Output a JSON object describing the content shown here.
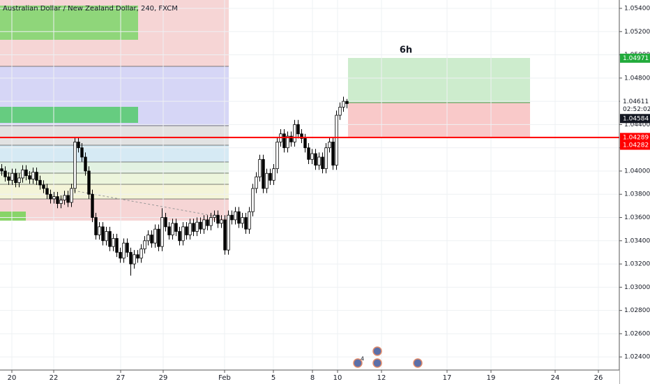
{
  "chart_data": {
    "type": "candlestick",
    "title": "Australian Dollar / New Zealand Dollar, 240, FXCM",
    "open": [
      1.0402,
      1.04,
      1.0395,
      1.0392,
      1.0398,
      1.039,
      1.0394,
      1.0401,
      1.0396,
      1.0393,
      1.0399,
      1.0392,
      1.0388,
      1.0385,
      1.038,
      1.0376,
      1.0378,
      1.0372,
      1.0375,
      1.0379,
      1.0373,
      1.0385,
      1.0425,
      1.042,
      1.0412,
      1.04,
      1.038,
      1.036,
      1.0345,
      1.0352,
      1.034,
      1.0348,
      1.0335,
      1.0342,
      1.033,
      1.0325,
      1.0338,
      1.033,
      1.032,
      1.0328,
      1.0325,
      1.0333,
      1.034,
      1.0345,
      1.0338,
      1.035,
      1.0335,
      1.036,
      1.0352,
      1.0345,
      1.0355,
      1.0348,
      1.034,
      1.0352,
      1.0345,
      1.0355,
      1.0348,
      1.0356,
      1.035,
      1.0358,
      1.0353,
      1.036,
      1.0362,
      1.0355,
      1.0358,
      1.0332,
      1.0362,
      1.0358,
      1.0365,
      1.0355,
      1.036,
      1.035,
      1.0365,
      1.0385,
      1.0395,
      1.041,
      1.0385,
      1.0398,
      1.0392,
      1.0402,
      1.0425,
      1.0432,
      1.042,
      1.043,
      1.0425,
      1.044,
      1.0432,
      1.0428,
      1.042,
      1.041,
      1.0415,
      1.0405,
      1.0412,
      1.0402,
      1.042,
      1.0425,
      1.0405,
      1.0448,
      1.0455,
      1.046
    ],
    "high": [
      1.0406,
      1.0404,
      1.0399,
      1.0402,
      1.0402,
      1.0398,
      1.0405,
      1.0405,
      1.04,
      1.0403,
      1.0403,
      1.0396,
      1.0392,
      1.0389,
      1.0384,
      1.0382,
      1.0382,
      1.0379,
      1.0383,
      1.0383,
      1.0389,
      1.0429,
      1.0429,
      1.0424,
      1.0416,
      1.0404,
      1.0384,
      1.0364,
      1.0356,
      1.0356,
      1.0352,
      1.0352,
      1.0346,
      1.0346,
      1.0334,
      1.0342,
      1.0342,
      1.0334,
      1.0332,
      1.0332,
      1.0337,
      1.0344,
      1.0349,
      1.0349,
      1.0354,
      1.0354,
      1.0368,
      1.0364,
      1.0356,
      1.0359,
      1.0359,
      1.0352,
      1.0356,
      1.0356,
      1.0359,
      1.0359,
      1.036,
      1.036,
      1.0362,
      1.0362,
      1.0364,
      1.0366,
      1.0366,
      1.0362,
      1.0362,
      1.0366,
      1.0366,
      1.0369,
      1.0369,
      1.0364,
      1.0364,
      1.0369,
      1.0389,
      1.0399,
      1.0414,
      1.0414,
      1.0402,
      1.0402,
      1.0406,
      1.0429,
      1.0436,
      1.0436,
      1.0434,
      1.0434,
      1.0444,
      1.0444,
      1.0436,
      1.0432,
      1.0424,
      1.0419,
      1.0419,
      1.0416,
      1.0416,
      1.0424,
      1.0429,
      1.0429,
      1.0452,
      1.0459,
      1.0464,
      1.0462
    ],
    "low": [
      1.0396,
      1.0391,
      1.0388,
      1.0388,
      1.0386,
      1.0386,
      1.039,
      1.0392,
      1.0389,
      1.0389,
      1.0388,
      1.0384,
      1.0381,
      1.0376,
      1.0372,
      1.0372,
      1.0368,
      1.0368,
      1.0371,
      1.0369,
      1.0369,
      1.0381,
      1.0416,
      1.0408,
      1.0396,
      1.0376,
      1.0356,
      1.0341,
      1.0341,
      1.0336,
      1.0336,
      1.0331,
      1.0331,
      1.0326,
      1.0321,
      1.0321,
      1.0326,
      1.031,
      1.0316,
      1.0321,
      1.0321,
      1.0329,
      1.0336,
      1.0334,
      1.0334,
      1.0331,
      1.0331,
      1.0348,
      1.0341,
      1.0341,
      1.0344,
      1.0336,
      1.0336,
      1.0341,
      1.0341,
      1.0344,
      1.0344,
      1.0346,
      1.0346,
      1.0349,
      1.0349,
      1.0356,
      1.0351,
      1.0351,
      1.0328,
      1.0328,
      1.0354,
      1.0354,
      1.0351,
      1.0351,
      1.0346,
      1.0346,
      1.0361,
      1.0381,
      1.0391,
      1.0381,
      1.0381,
      1.0388,
      1.0388,
      1.0398,
      1.0421,
      1.0416,
      1.0416,
      1.0421,
      1.0421,
      1.0428,
      1.0424,
      1.0416,
      1.0406,
      1.0406,
      1.0401,
      1.0401,
      1.0398,
      1.0398,
      1.0416,
      1.0401,
      1.0401,
      1.0444,
      1.0451,
      1.0454
    ],
    "close": [
      1.04,
      1.0395,
      1.0392,
      1.0398,
      1.039,
      1.0394,
      1.0401,
      1.0396,
      1.0393,
      1.0399,
      1.0392,
      1.0388,
      1.0385,
      1.038,
      1.0376,
      1.0378,
      1.0372,
      1.0375,
      1.0379,
      1.0373,
      1.0385,
      1.0425,
      1.042,
      1.0412,
      1.04,
      1.038,
      1.036,
      1.0345,
      1.0352,
      1.034,
      1.0348,
      1.0335,
      1.0342,
      1.033,
      1.0325,
      1.0338,
      1.033,
      1.032,
      1.0328,
      1.0325,
      1.0333,
      1.034,
      1.0345,
      1.0338,
      1.035,
      1.0335,
      1.036,
      1.0352,
      1.0345,
      1.0355,
      1.0348,
      1.034,
      1.0352,
      1.0345,
      1.0355,
      1.0348,
      1.0356,
      1.035,
      1.0358,
      1.0353,
      1.036,
      1.0362,
      1.0355,
      1.0358,
      1.0332,
      1.0362,
      1.0358,
      1.0365,
      1.0355,
      1.036,
      1.035,
      1.0365,
      1.0385,
      1.0395,
      1.041,
      1.0385,
      1.0398,
      1.0392,
      1.0402,
      1.0425,
      1.0432,
      1.042,
      1.043,
      1.0425,
      1.044,
      1.0432,
      1.0428,
      1.042,
      1.041,
      1.0415,
      1.0405,
      1.0412,
      1.0402,
      1.042,
      1.0425,
      1.0405,
      1.0448,
      1.0455,
      1.046,
      1.0458
    ],
    "up_color": "#ffffff",
    "down_color": "#000000",
    "ylim": [
      1.02167,
      1.05472
    ],
    "yticks": [
      {
        "value": 1.024,
        "label": "1.02400"
      },
      {
        "value": 1.026,
        "label": "1.02600"
      },
      {
        "value": 1.028,
        "label": "1.02800"
      },
      {
        "value": 1.03,
        "label": "1.03000"
      },
      {
        "value": 1.032,
        "label": "1.03200"
      },
      {
        "value": 1.034,
        "label": "1.03400"
      },
      {
        "value": 1.036,
        "label": "1.03600"
      },
      {
        "value": 1.038,
        "label": "1.03800"
      },
      {
        "value": 1.04,
        "label": "1.04000"
      },
      {
        "value": 1.042,
        "label": "1.04200"
      },
      {
        "value": 1.044,
        "label": "1.04400"
      },
      {
        "value": 1.046,
        "label": "1.04600"
      },
      {
        "value": 1.048,
        "label": "1.04800"
      },
      {
        "value": 1.05,
        "label": "1.05000"
      },
      {
        "value": 1.052,
        "label": "1.05200"
      },
      {
        "value": 1.054,
        "label": "1.05400"
      }
    ],
    "xlim": [
      -0.5,
      177.1
    ],
    "xticks": [
      {
        "value": 2.9,
        "label": "20"
      },
      {
        "value": 14.9,
        "label": "22"
      },
      {
        "value": 34.1,
        "label": "27"
      },
      {
        "value": 46.3,
        "label": "29"
      },
      {
        "value": 63.9,
        "label": "Feb"
      },
      {
        "value": 77.9,
        "label": "5"
      },
      {
        "value": 89.1,
        "label": "8"
      },
      {
        "value": 96.3,
        "label": "10"
      },
      {
        "value": 108.9,
        "label": "12"
      },
      {
        "value": 127.7,
        "label": "17"
      },
      {
        "value": 140.3,
        "label": "19"
      },
      {
        "value": 158.7,
        "label": "24"
      },
      {
        "value": 171.1,
        "label": "26"
      }
    ],
    "grid": true,
    "price_labels": [
      {
        "value": 1.04971,
        "label": "1.04971",
        "color": "#22ab3c"
      },
      {
        "value": 1.04611,
        "label": "1.04611",
        "color": "#ffffff"
      },
      {
        "value": 1.04584,
        "label": "1.04584",
        "color": "#131722"
      },
      {
        "value": 1.04289,
        "label": "1.04289",
        "color": "#ff0000"
      },
      {
        "value": 1.04282,
        "label": "1.04282",
        "color": "#ff0000"
      }
    ],
    "countdown": "02:52:02",
    "position_label": "6h",
    "event_count": "4"
  }
}
